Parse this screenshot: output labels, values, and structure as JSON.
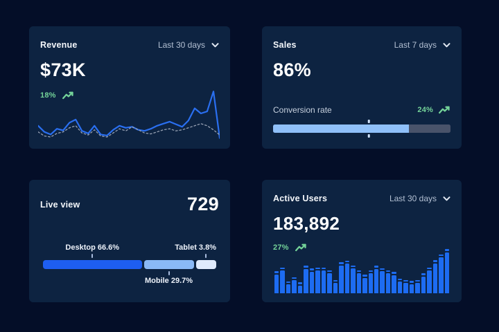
{
  "colors": {
    "page_bg": "#040e28",
    "card_bg": "#0d2341",
    "accent_blue": "#2a6ff0",
    "bar_blue": "#1d6cf2",
    "light_blue": "#8fc0f9",
    "pale_blue": "#dfeafc",
    "track_gray": "#49536a",
    "dashed_gray": "#97a1b3",
    "green": "#74d399",
    "text_primary": "#ffffff",
    "text_secondary": "#b3c0d3"
  },
  "cards": {
    "revenue": {
      "title": "Revenue",
      "period": "Last 30 days",
      "period_icon": "chevron-down",
      "value": "$73K",
      "delta": "18%",
      "delta_icon": "trend-up",
      "chart_data": {
        "type": "line",
        "x_count": 30,
        "ylim": [
          0,
          100
        ],
        "grid": false,
        "legend": "none",
        "series": [
          {
            "name": "current",
            "style": "solid",
            "color": "#2a6ff0",
            "values": [
              30,
              18,
              13,
              24,
              21,
              36,
              42,
              20,
              15,
              30,
              13,
              11,
              22,
              30,
              26,
              28,
              22,
              20,
              24,
              30,
              34,
              38,
              33,
              28,
              40,
              64,
              54,
              58,
              97,
              6
            ]
          },
          {
            "name": "previous",
            "style": "dashed",
            "color": "#97a1b3",
            "values": [
              18,
              10,
              8,
              15,
              18,
              26,
              30,
              16,
              12,
              22,
              10,
              8,
              16,
              24,
              20,
              28,
              22,
              16,
              14,
              18,
              22,
              24,
              20,
              22,
              26,
              30,
              34,
              30,
              22,
              12
            ]
          }
        ]
      }
    },
    "sales": {
      "title": "Sales",
      "period": "Last 7 days",
      "period_icon": "chevron-down",
      "value": "86%",
      "metric_label": "Conversion rate",
      "delta": "24%",
      "delta_icon": "trend-up",
      "chart_data": {
        "type": "progress-bar",
        "fill_percent": 76.5,
        "marker_percent": 54,
        "fill_color": "#8fc0f9",
        "track_color": "#49536a"
      }
    },
    "live_view": {
      "title": "Live view",
      "value": "729",
      "chart_data": {
        "type": "stacked-bar",
        "gap_percent": 1.2,
        "segments": [
          {
            "name": "Desktop",
            "label": "Desktop 66.6%",
            "value_percent": 66.6,
            "display_width_percent": 57,
            "color": "#1e5ef0",
            "label_side": "top"
          },
          {
            "name": "Mobile",
            "label": "Mobile 29.7%",
            "value_percent": 29.7,
            "display_width_percent": 28.8,
            "color": "#8ab9f6",
            "label_side": "bottom"
          },
          {
            "name": "Tablet",
            "label": "Tablet 3.8%",
            "value_percent": 3.8,
            "display_width_percent": 11.8,
            "color": "#dfeafc",
            "label_side": "top"
          }
        ]
      }
    },
    "active_users": {
      "title": "Active Users",
      "period": "Last 30 days",
      "period_icon": "chevron-down",
      "value": "183,892",
      "delta": "27%",
      "delta_icon": "trend-up",
      "chart_data": {
        "type": "bar",
        "color": "#1d6cf2",
        "ylim": [
          0,
          100
        ],
        "values": [
          50,
          58,
          27,
          36,
          25,
          62,
          56,
          58,
          58,
          52,
          30,
          70,
          74,
          63,
          52,
          42,
          52,
          62,
          57,
          52,
          48,
          33,
          30,
          28,
          30,
          45,
          58,
          75,
          88,
          100
        ]
      }
    }
  }
}
